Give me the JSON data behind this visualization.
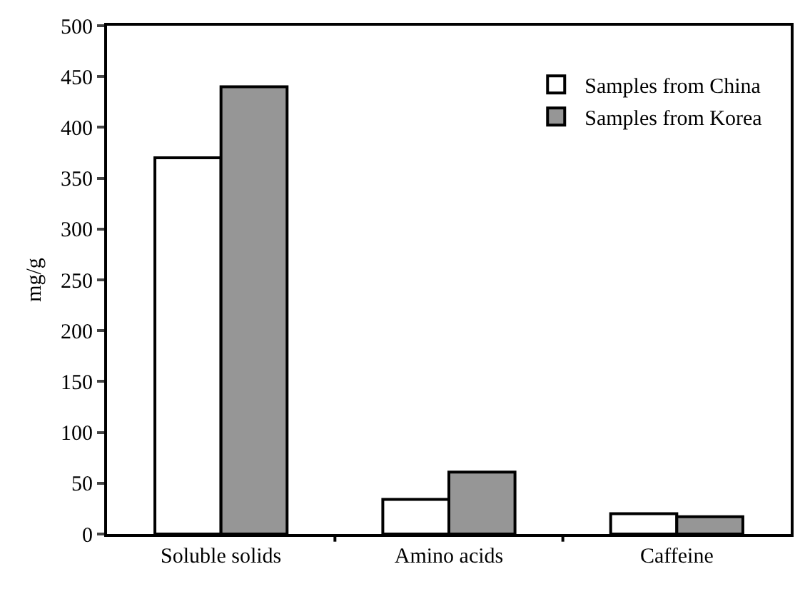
{
  "chart_data": {
    "type": "bar",
    "ylabel": "mg/g",
    "categories": [
      "Soluble solids",
      "Amino acids",
      "Caffeine"
    ],
    "series": [
      {
        "name": "Samples from China",
        "color": "#ffffff",
        "values": [
          370,
          34,
          20
        ]
      },
      {
        "name": "Samples from Korea",
        "color": "#969696",
        "values": [
          440,
          61,
          17
        ]
      }
    ],
    "ylim": [
      0,
      500
    ],
    "yticks": [
      0,
      50,
      100,
      150,
      200,
      250,
      300,
      350,
      400,
      450,
      500
    ],
    "grid": false,
    "legend": "top right"
  }
}
